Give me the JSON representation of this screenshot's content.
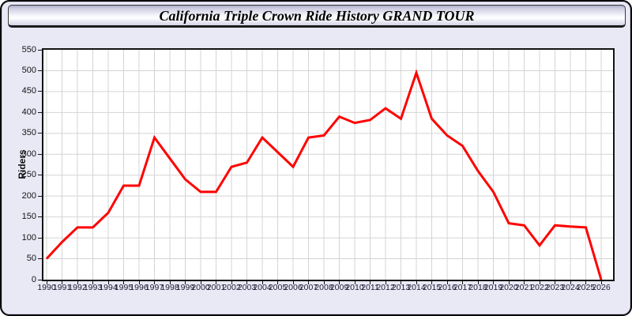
{
  "chart_data": {
    "type": "line",
    "title": "California Triple Crown Ride History GRAND TOUR",
    "xlabel": "",
    "ylabel": "Riders",
    "ylim": [
      0,
      550
    ],
    "ytick_step": 50,
    "ytick_labels": [
      "0",
      "50",
      "100",
      "150",
      "200",
      "250",
      "300",
      "350",
      "400",
      "450",
      "500",
      "550"
    ],
    "grid": true,
    "legend_position": "none",
    "categories": [
      "1990",
      "1991",
      "1992",
      "1993",
      "1994",
      "1995",
      "1996",
      "1997",
      "1998",
      "1999",
      "2000",
      "2001",
      "2002",
      "2003",
      "2004",
      "2005",
      "2006",
      "2007",
      "2008",
      "2009",
      "2010",
      "2011",
      "2012",
      "2013",
      "2014",
      "2015",
      "2016",
      "2017",
      "2018",
      "2019",
      "2020",
      "2021",
      "2022",
      "2023",
      "2024",
      "2025",
      "2026"
    ],
    "series": [
      {
        "name": "Riders",
        "color": "#ff0000",
        "values": [
          50,
          90,
          125,
          125,
          160,
          225,
          225,
          340,
          290,
          240,
          210,
          210,
          270,
          280,
          340,
          305,
          270,
          340,
          345,
          390,
          375,
          382,
          410,
          385,
          495,
          385,
          345,
          320,
          260,
          210,
          135,
          130,
          82,
          130,
          127,
          125,
          0
        ]
      }
    ]
  },
  "colors": {
    "line": "#ff0000",
    "grid": "#d4d4d4",
    "plot_border": "#141414",
    "page_background": "#e9e9f6",
    "plot_background": "#ffffff",
    "x_tick_label": "#1b1b32",
    "y_tick_label": "#141414"
  }
}
